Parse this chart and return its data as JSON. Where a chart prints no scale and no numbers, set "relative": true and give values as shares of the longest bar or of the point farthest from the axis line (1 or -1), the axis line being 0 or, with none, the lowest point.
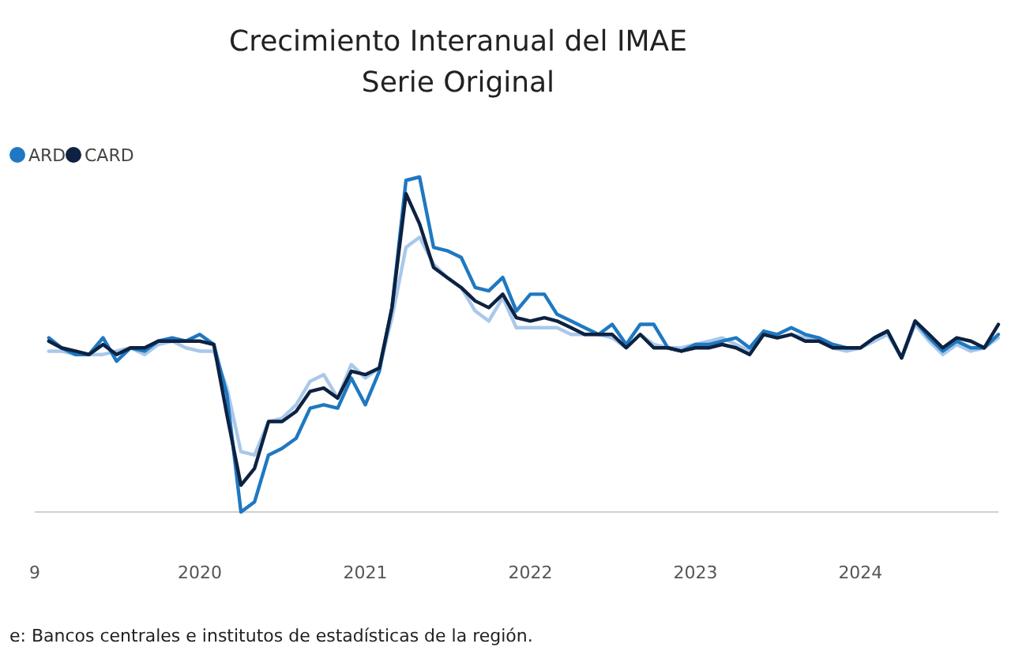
{
  "chart_data": {
    "type": "line",
    "title": "Crecimiento Interanual del IMAE",
    "subtitle": "Serie Original",
    "relative": true,
    "x": [
      "2019-02",
      "2019-03",
      "2019-04",
      "2019-05",
      "2019-06",
      "2019-07",
      "2019-08",
      "2019-09",
      "2019-10",
      "2019-11",
      "2019-12",
      "2020-01",
      "2020-02",
      "2020-03",
      "2020-04",
      "2020-05",
      "2020-06",
      "2020-07",
      "2020-08",
      "2020-09",
      "2020-10",
      "2020-11",
      "2020-12",
      "2021-01",
      "2021-02",
      "2021-03",
      "2021-04",
      "2021-05",
      "2021-06",
      "2021-07",
      "2021-08",
      "2021-09",
      "2021-10",
      "2021-11",
      "2021-12",
      "2022-01",
      "2022-02",
      "2022-03",
      "2022-04",
      "2022-05",
      "2022-06",
      "2022-07",
      "2022-08",
      "2022-09",
      "2022-10",
      "2022-11",
      "2022-12",
      "2023-01",
      "2023-02",
      "2023-03",
      "2023-04",
      "2023-05",
      "2023-06",
      "2023-07",
      "2023-08",
      "2023-09",
      "2023-10",
      "2023-11",
      "2023-12",
      "2024-01",
      "2024-02",
      "2024-03",
      "2024-04",
      "2024-05",
      "2024-06",
      "2024-07",
      "2024-08",
      "2024-09",
      "2024-10",
      "2024-11"
    ],
    "xlim": [
      "2019-01",
      "2024-11"
    ],
    "xticks": [
      {
        "value": "2019-01",
        "label": "9"
      },
      {
        "value": "2020-01",
        "label": "2020"
      },
      {
        "value": "2021-01",
        "label": "2021"
      },
      {
        "value": "2022-01",
        "label": "2022"
      },
      {
        "value": "2023-01",
        "label": "2023"
      },
      {
        "value": "2024-01",
        "label": "2024"
      }
    ],
    "tick_labels": "x",
    "grid": false,
    "legend": "top left",
    "marker": "none",
    "line_style": "solid",
    "series": [
      {
        "color": "#a9c8ea",
        "values": [
          0.48,
          0.48,
          0.47,
          0.47,
          0.47,
          0.48,
          0.49,
          0.47,
          0.5,
          0.51,
          0.49,
          0.48,
          0.48,
          0.37,
          0.18,
          0.17,
          0.27,
          0.28,
          0.32,
          0.39,
          0.41,
          0.34,
          0.44,
          0.4,
          0.43,
          0.58,
          0.79,
          0.82,
          0.74,
          0.7,
          0.67,
          0.6,
          0.57,
          0.64,
          0.55,
          0.55,
          0.55,
          0.55,
          0.53,
          0.53,
          0.53,
          0.52,
          0.49,
          0.53,
          0.5,
          0.49,
          0.49,
          0.5,
          0.51,
          0.52,
          0.5,
          0.48,
          0.53,
          0.52,
          0.53,
          0.52,
          0.51,
          0.49,
          0.48,
          0.49,
          0.51,
          0.53,
          0.46,
          0.56,
          0.51,
          0.47,
          0.5,
          0.48,
          0.49,
          0.52
        ]
      },
      {
        "name": "ARD",
        "color": "#1f78c1",
        "values": [
          0.52,
          0.49,
          0.47,
          0.47,
          0.52,
          0.45,
          0.49,
          0.48,
          0.51,
          0.52,
          0.51,
          0.53,
          0.5,
          0.35,
          0,
          0.03,
          0.17,
          0.19,
          0.22,
          0.31,
          0.32,
          0.31,
          0.4,
          0.32,
          0.42,
          0.61,
          0.99,
          1,
          0.79,
          0.78,
          0.76,
          0.67,
          0.66,
          0.7,
          0.6,
          0.65,
          0.65,
          0.59,
          0.57,
          0.55,
          0.53,
          0.56,
          0.5,
          0.56,
          0.56,
          0.49,
          0.48,
          0.5,
          0.5,
          0.51,
          0.52,
          0.49,
          0.54,
          0.53,
          0.55,
          0.53,
          0.52,
          0.5,
          0.49,
          0.49,
          0.52,
          0.54,
          0.46,
          0.57,
          0.52,
          0.48,
          0.51,
          0.49,
          0.49,
          0.53
        ]
      },
      {
        "name": "CARD",
        "color": "#0d2240",
        "values": [
          0.51,
          0.49,
          0.48,
          0.47,
          0.5,
          0.47,
          0.49,
          0.49,
          0.51,
          0.51,
          0.51,
          0.51,
          0.5,
          0.29,
          0.08,
          0.13,
          0.27,
          0.27,
          0.3,
          0.36,
          0.37,
          0.34,
          0.42,
          0.41,
          0.43,
          0.61,
          0.95,
          0.86,
          0.73,
          0.7,
          0.67,
          0.63,
          0.61,
          0.65,
          0.58,
          0.57,
          0.58,
          0.57,
          0.55,
          0.53,
          0.53,
          0.53,
          0.49,
          0.53,
          0.49,
          0.49,
          0.48,
          0.49,
          0.49,
          0.5,
          0.49,
          0.47,
          0.53,
          0.52,
          0.53,
          0.51,
          0.51,
          0.49,
          0.49,
          0.49,
          0.52,
          0.54,
          0.46,
          0.57,
          0.53,
          0.49,
          0.52,
          0.51,
          0.49,
          0.56
        ]
      }
    ],
    "annotations": [
      "e: Bancos centrales e institutos de estadísticas de la región."
    ]
  }
}
